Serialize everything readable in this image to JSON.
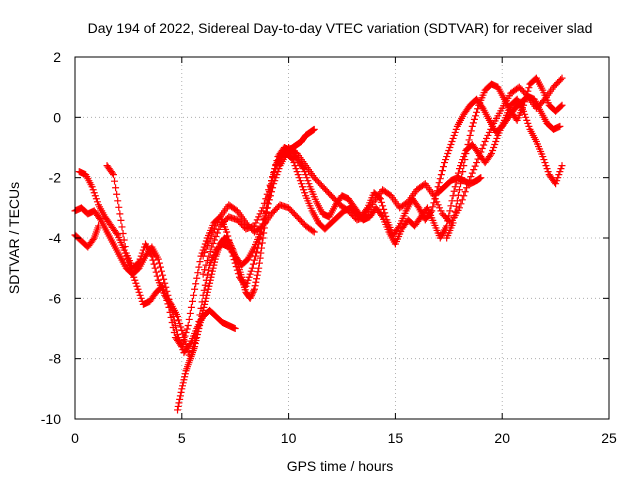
{
  "chart_data": {
    "type": "scatter",
    "title": "Day 194 of 2022, Sidereal Day-to-day VTEC variation (SDTVAR) for receiver slad",
    "xlabel": "GPS time / hours",
    "ylabel": "SDTVAR / TECUs",
    "xlim": [
      0,
      25
    ],
    "ylim": [
      -10,
      2
    ],
    "xticks": [
      "0",
      "5",
      "10",
      "15",
      "20",
      "25"
    ],
    "yticks": [
      "-10",
      "-8",
      "-6",
      "-4",
      "-2",
      "0",
      "2"
    ],
    "grid": true,
    "marker": "+",
    "color": "#ff0000",
    "series": [
      {
        "x": [
          0.0,
          0.3,
          0.6,
          0.9,
          1.2,
          1.5,
          1.8,
          2.1,
          2.4,
          2.7,
          3.0,
          3.3,
          3.6,
          3.9,
          4.2,
          4.5,
          4.8,
          5.1,
          5.4,
          5.7,
          6.0,
          6.3,
          6.6,
          6.9,
          7.2,
          7.5
        ],
        "y": [
          -3.1,
          -3.0,
          -3.2,
          -3.1,
          -3.4,
          -3.8,
          -4.2,
          -4.6,
          -5.0,
          -5.2,
          -5.0,
          -4.6,
          -4.3,
          -4.7,
          -5.5,
          -6.3,
          -7.2,
          -7.8,
          -7.5,
          -7.0,
          -6.6,
          -6.4,
          -6.6,
          -6.8,
          -6.9,
          -7.0
        ]
      },
      {
        "x": [
          0.0,
          0.3,
          0.6,
          0.9,
          1.1
        ],
        "y": [
          -3.9,
          -4.1,
          -4.3,
          -4.0,
          -3.6
        ]
      },
      {
        "x": [
          0.2,
          0.5,
          0.8,
          1.1,
          1.4,
          1.7,
          2.0,
          2.3,
          2.6,
          2.9,
          3.2,
          3.5,
          3.8,
          4.1,
          4.4,
          4.7,
          5.0,
          5.3,
          5.6,
          5.9,
          6.2,
          6.5,
          6.8,
          7.1,
          7.4,
          7.7,
          8.0,
          8.3,
          8.6,
          8.9,
          9.2,
          9.5,
          9.8,
          10.1,
          10.4,
          10.7,
          11.0,
          11.3,
          11.6,
          11.9,
          12.2,
          12.5,
          12.8,
          13.1,
          13.4,
          13.7,
          14.0,
          14.3,
          14.6,
          14.9,
          15.2,
          15.5,
          15.8,
          16.1,
          16.4,
          16.7,
          17.0,
          17.3,
          17.6,
          17.9,
          18.2,
          18.5,
          18.8,
          19.1,
          19.4,
          19.7,
          20.0,
          20.3,
          20.6,
          20.9,
          21.2,
          21.5,
          21.8,
          22.1,
          22.4,
          22.7
        ],
        "y": [
          -1.8,
          -1.9,
          -2.3,
          -2.9,
          -3.3,
          -3.6,
          -3.9,
          -4.4,
          -5.0,
          -5.6,
          -6.2,
          -6.1,
          -5.8,
          -5.6,
          -6.3,
          -7.3,
          -7.6,
          -6.9,
          -5.7,
          -4.6,
          -4.0,
          -3.5,
          -3.3,
          -3.8,
          -4.6,
          -5.3,
          -5.6,
          -5.0,
          -4.2,
          -3.2,
          -2.1,
          -1.3,
          -1.0,
          -1.1,
          -1.4,
          -1.7,
          -2.3,
          -2.8,
          -3.2,
          -3.3,
          -2.9,
          -2.6,
          -2.7,
          -3.0,
          -3.3,
          -3.0,
          -2.5,
          -2.7,
          -3.4,
          -3.9,
          -3.6,
          -3.1,
          -2.7,
          -3.0,
          -3.4,
          -3.1,
          -2.3,
          -1.5,
          -0.9,
          -0.3,
          0.1,
          0.4,
          0.6,
          0.3,
          -0.1,
          -0.5,
          -0.3,
          0.0,
          0.3,
          0.5,
          0.7,
          0.6,
          0.2,
          -0.2,
          -0.4,
          -0.3
        ]
      },
      {
        "x": [
          1.5,
          1.8,
          2.1,
          2.4,
          2.7,
          3.0,
          3.3,
          3.6,
          3.9,
          4.2,
          4.5,
          4.8,
          5.1,
          5.4,
          5.7,
          6.0,
          6.3,
          6.6,
          6.9,
          7.2,
          7.5,
          7.8,
          8.1,
          8.4,
          8.7,
          9.0,
          9.3,
          9.6,
          9.9,
          10.2,
          10.5,
          10.8,
          11.1,
          11.4,
          11.7,
          12.0,
          12.3,
          12.6,
          12.9,
          13.2,
          13.5,
          13.8,
          14.1,
          14.4,
          14.7,
          15.0,
          15.3,
          15.6,
          15.9,
          16.2,
          16.5,
          16.8,
          17.1,
          17.4,
          17.7,
          18.0,
          18.3,
          18.6,
          18.9,
          19.2,
          19.5,
          19.8,
          20.1,
          20.4,
          20.7,
          21.0,
          21.3,
          21.6,
          21.9,
          22.2,
          22.5,
          22.8
        ],
        "y": [
          -1.6,
          -1.9,
          -3.2,
          -4.5,
          -5.0,
          -4.8,
          -4.2,
          -4.6,
          -5.4,
          -5.9,
          -6.2,
          -6.6,
          -7.3,
          -8.0,
          -7.2,
          -5.9,
          -4.9,
          -4.4,
          -4.2,
          -4.3,
          -4.6,
          -4.9,
          -4.7,
          -4.3,
          -3.8,
          -3.0,
          -2.2,
          -1.6,
          -1.2,
          -1.4,
          -2.0,
          -2.6,
          -3.1,
          -3.5,
          -3.7,
          -3.5,
          -3.3,
          -3.1,
          -3.0,
          -3.2,
          -3.4,
          -3.3,
          -3.0,
          -3.3,
          -3.8,
          -4.2,
          -3.7,
          -3.4,
          -3.6,
          -3.3,
          -3.0,
          -3.5,
          -4.0,
          -3.6,
          -2.6,
          -1.7,
          -1.1,
          -0.9,
          -1.2,
          -1.5,
          -1.2,
          -0.6,
          -0.1,
          0.4,
          0.6,
          0.2,
          -0.4,
          -0.8,
          -1.3,
          -1.9,
          -2.2,
          -1.6
        ]
      },
      {
        "x": [
          4.8,
          5.0,
          5.2,
          5.4,
          5.6,
          5.8,
          6.0,
          6.2,
          6.4,
          6.6,
          6.8,
          7.0,
          7.2,
          7.4,
          7.6,
          7.8,
          8.0,
          8.2,
          8.4,
          8.6,
          8.8,
          9.0,
          9.2,
          9.4,
          9.6,
          9.8,
          10.0,
          10.2,
          10.4,
          10.6,
          10.8,
          11.0,
          11.2
        ],
        "y": [
          -9.7,
          -9.0,
          -8.4,
          -8.0,
          -7.6,
          -7.0,
          -6.4,
          -5.8,
          -5.2,
          -4.6,
          -4.2,
          -4.0,
          -4.1,
          -4.4,
          -4.8,
          -5.3,
          -5.8,
          -6.0,
          -5.7,
          -5.0,
          -4.0,
          -3.0,
          -2.2,
          -1.6,
          -1.3,
          -1.2,
          -1.1,
          -1.0,
          -0.9,
          -0.8,
          -0.6,
          -0.5,
          -0.4
        ]
      },
      {
        "x": [
          6.0,
          6.4,
          6.8,
          7.2,
          7.6,
          8.0,
          8.4,
          8.8,
          9.2,
          9.6,
          10.0,
          10.4,
          10.8,
          11.2,
          11.6,
          12.0,
          12.4,
          12.8,
          13.2,
          13.6,
          14.0,
          14.4,
          14.8,
          15.2,
          15.6,
          16.0,
          16.4,
          16.8,
          17.2,
          17.6,
          18.0,
          18.4,
          18.8,
          19.2,
          19.6,
          20.0,
          20.4,
          20.8,
          21.2,
          21.6,
          22.0,
          22.4,
          22.8
        ],
        "y": [
          -5.2,
          -4.3,
          -3.6,
          -3.3,
          -3.4,
          -3.7,
          -3.6,
          -3.0,
          -2.1,
          -1.3,
          -1.0,
          -1.2,
          -1.6,
          -2.0,
          -2.3,
          -2.6,
          -2.9,
          -3.1,
          -3.4,
          -3.3,
          -2.8,
          -2.4,
          -2.6,
          -3.0,
          -2.8,
          -2.4,
          -2.2,
          -2.6,
          -3.2,
          -3.5,
          -3.0,
          -2.2,
          -1.5,
          -0.8,
          -0.2,
          0.3,
          0.8,
          1.0,
          0.7,
          0.3,
          0.6,
          1.0,
          1.3
        ]
      },
      {
        "x": [
          6.0,
          6.4,
          6.8,
          7.2,
          7.6,
          8.0,
          8.4,
          8.8,
          9.2,
          9.6,
          10.0,
          10.4,
          10.8,
          11.2
        ],
        "y": [
          -4.6,
          -3.9,
          -3.3,
          -2.9,
          -3.1,
          -3.5,
          -3.8,
          -3.6,
          -3.2,
          -2.9,
          -3.0,
          -3.3,
          -3.6,
          -3.8
        ]
      },
      {
        "x": [
          17.4,
          17.7,
          18.0,
          18.3,
          18.6,
          18.9,
          19.2,
          19.5,
          19.8,
          20.1,
          20.4,
          20.7,
          21.0,
          21.3,
          21.6,
          21.9,
          22.2,
          22.5,
          22.8
        ],
        "y": [
          -4.0,
          -3.5,
          -2.4,
          -1.2,
          -0.3,
          0.4,
          0.9,
          1.1,
          1.0,
          0.6,
          0.2,
          -0.1,
          0.4,
          1.1,
          1.3,
          0.9,
          0.4,
          0.2,
          0.4
        ]
      },
      {
        "x": [
          17.0,
          17.3,
          17.6,
          17.9,
          18.2,
          18.5,
          18.8,
          19.0
        ],
        "y": [
          -2.5,
          -2.3,
          -2.1,
          -2.0,
          -2.1,
          -2.2,
          -2.1,
          -2.0
        ]
      }
    ]
  }
}
